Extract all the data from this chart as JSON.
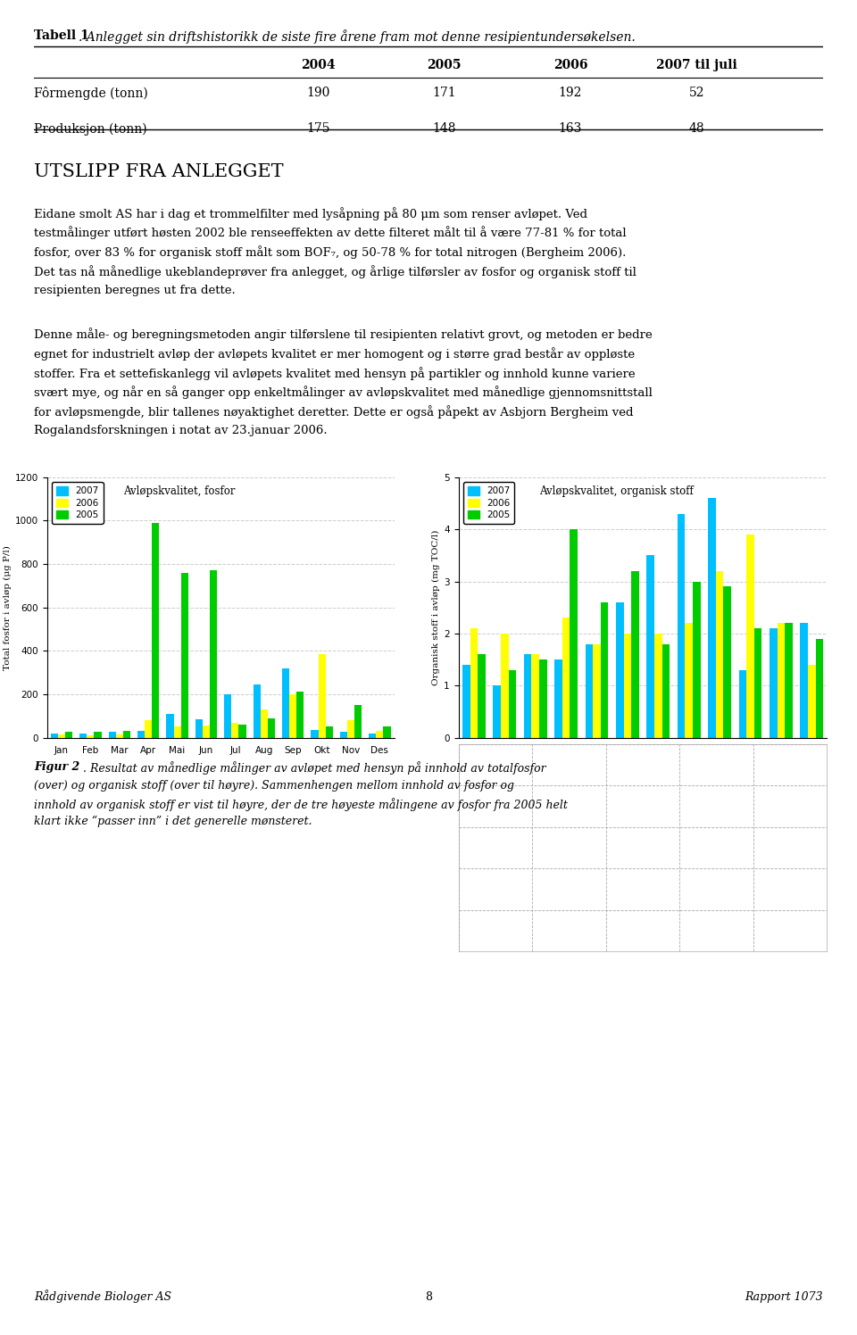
{
  "title_table_bold": "Tabell 1",
  "title_table_italic": ". Anlegget sin driftshistorikk de siste fire årene fram mot denne resipientundersøkelsen.",
  "table_headers": [
    "",
    "2004",
    "2005",
    "2006",
    "2007 til juli"
  ],
  "table_row1": [
    "Fôrmengde (tonn)",
    "190",
    "171",
    "192",
    "52"
  ],
  "table_row2": [
    "Produksjon (tonn)",
    "175",
    "148",
    "163",
    "48"
  ],
  "section_title": "UTSLIPP FRA ANLEGGET",
  "paragraph1_lines": [
    "Eidane smolt AS har i dag et trommelfilter med lysåpning på 80 μm som renser avløpet. Ved",
    "testmålinger utført høsten 2002 ble renseeffekten av dette filteret målt til å være 77-81 % for total",
    "fosfor, over 83 % for organisk stoff målt som BOF₇, og 50-78 % for total nitrogen (Bergheim 2006).",
    "Det tas nå månedlige ukeblandeprøver fra anlegget, og årlige tilførsler av fosfor og organisk stoff til",
    "resipienten beregnes ut fra dette."
  ],
  "paragraph2_lines": [
    "Denne måle- og beregningsmetoden angir tilførslene til resipienten relativt grovt, og metoden er bedre",
    "egnet for industrielt avløp der avløpets kvalitet er mer homogent og i større grad består av oppløste",
    "stoffer. Fra et settefiskanlegg vil avløpets kvalitet med hensyn på partikler og innhold kunne variere",
    "svært mye, og når en så ganger opp enkeltmålinger av avløpskvalitet med månedlige gjennomsnittstall",
    "for avløpsmengde, blir tallenes nøyaktighet deretter. Dette er også påpekt av Asbjorn Bergheim ved",
    "Rogalandsforskningen i notat av 23.januar 2006."
  ],
  "chart1_title": "Avløpskvalitet, fosfor",
  "chart1_ylabel": "Total fosfor i avløp (μg P/l)",
  "chart1_ylim": [
    0,
    1200
  ],
  "chart1_yticks": [
    0,
    200,
    400,
    600,
    800,
    1000,
    1200
  ],
  "chart1_months": [
    "Jan",
    "Feb",
    "Mar",
    "Apr",
    "Mai",
    "Jun",
    "Jul",
    "Aug",
    "Sep",
    "Okt",
    "Nov",
    "Des"
  ],
  "chart1_2007": [
    20,
    20,
    25,
    30,
    110,
    85,
    200,
    245,
    320,
    35,
    25,
    20
  ],
  "chart1_2006": [
    15,
    10,
    15,
    80,
    50,
    55,
    70,
    130,
    200,
    385,
    80,
    30
  ],
  "chart1_2005": [
    25,
    25,
    30,
    990,
    760,
    770,
    60,
    90,
    210,
    50,
    150,
    50
  ],
  "chart2_title": "Avløpskvalitet, organisk stoff",
  "chart2_ylabel": "Organisk stoff i avløp (mg TOC/l)",
  "chart2_ylim": [
    0,
    5
  ],
  "chart2_yticks": [
    0,
    1,
    2,
    3,
    4,
    5
  ],
  "chart2_months": [
    "Jan",
    "Feb",
    "Mar",
    "Apr",
    "Mai",
    "Jun",
    "Jul",
    "Aug",
    "Sep",
    "Okt",
    "Nov",
    "Des"
  ],
  "chart2_2007": [
    1.4,
    1.0,
    1.6,
    1.5,
    1.8,
    2.6,
    3.5,
    4.3,
    4.6,
    1.3,
    2.1,
    2.2
  ],
  "chart2_2006": [
    2.1,
    2.0,
    1.6,
    2.3,
    1.8,
    2.0,
    2.0,
    2.2,
    3.2,
    3.9,
    2.2,
    1.4
  ],
  "chart2_2005": [
    1.6,
    1.3,
    1.5,
    4.0,
    2.6,
    3.2,
    1.8,
    3.0,
    2.9,
    2.1,
    2.2,
    1.9
  ],
  "color_2007": "#00BFFF",
  "color_2006": "#FFFF00",
  "color_2005": "#00CC00",
  "figure2_caption_bold": "Figur 2",
  "figure2_caption_lines": [
    ". Resultat av månedlige målinger av avløpet med hensyn på innhold av totalfosfor",
    "(over) og organisk stoff (over til høyre). Sammenhengen mellom innhold av fosfor og",
    "innhold av organisk stoff er vist til høyre, der de tre høyeste målingene av fosfor fra 2005 helt",
    "klart ikke “passer inn” i det generelle mønsteret."
  ],
  "footer_left": "Rådgivende Biologer AS",
  "footer_center": "8",
  "footer_right": "Rapport 1073",
  "background_color": "#ffffff",
  "text_color": "#000000",
  "grid_color": "#cccccc"
}
